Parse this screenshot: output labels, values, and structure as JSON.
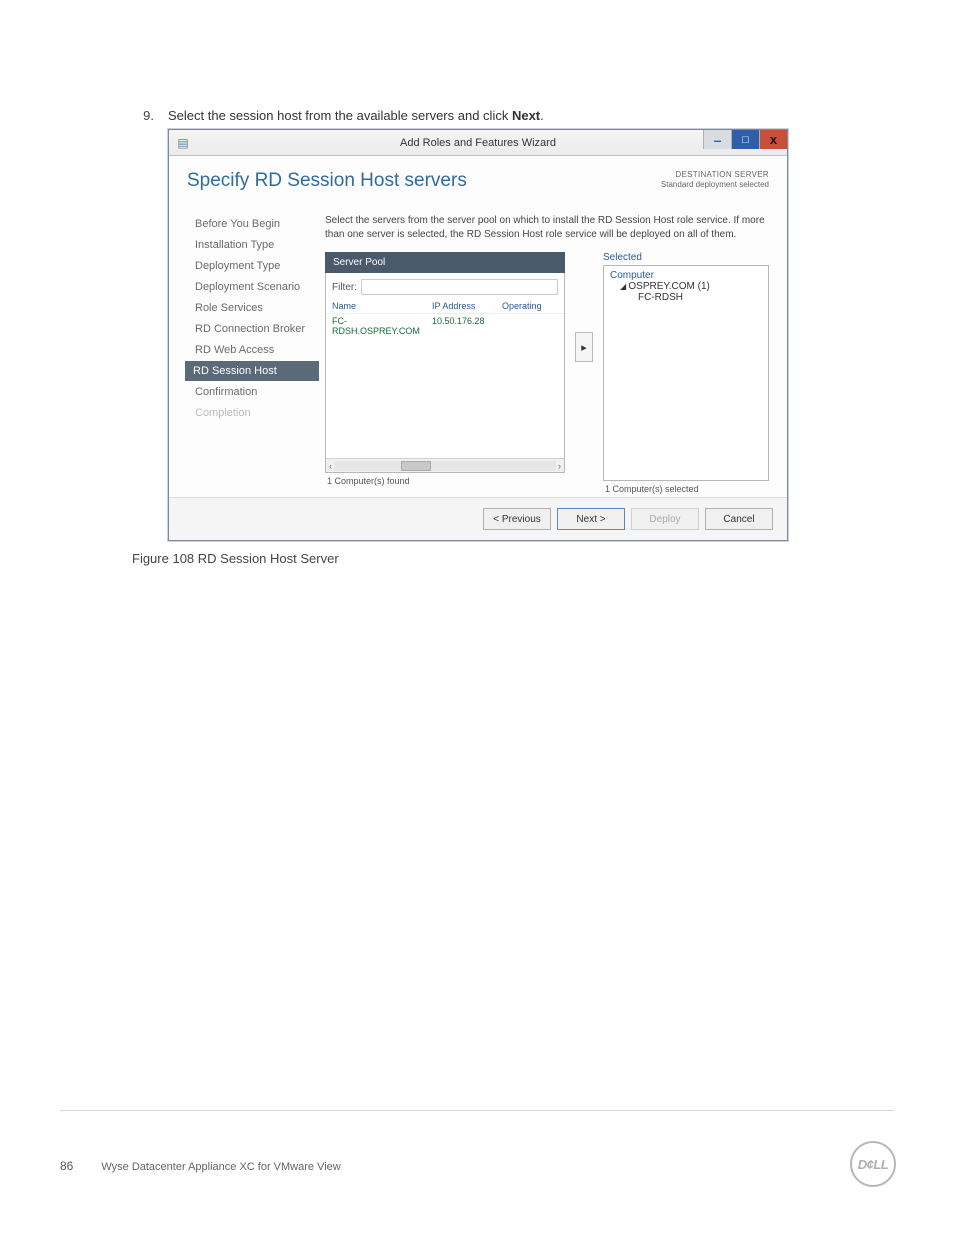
{
  "step": {
    "number": "9.",
    "text_pre": "Select the session host from the available servers and click ",
    "text_bold": "Next",
    "text_post": "."
  },
  "window": {
    "title": "Add Roles and Features Wizard",
    "header_title": "Specify RD Session Host servers",
    "dest_line1": "DESTINATION SERVER",
    "dest_line2": "Standard deployment selected",
    "description": "Select the servers from the server pool on which to install the RD Session Host role service. If more than one server is selected, the RD Session Host role service will be deployed on all of them.",
    "nav": [
      {
        "label": "Before You Begin",
        "state": "done"
      },
      {
        "label": "Installation Type",
        "state": "done"
      },
      {
        "label": "Deployment Type",
        "state": "done"
      },
      {
        "label": "Deployment Scenario",
        "state": "done"
      },
      {
        "label": "Role Services",
        "state": "done"
      },
      {
        "label": "RD Connection Broker",
        "state": "done"
      },
      {
        "label": "RD Web Access",
        "state": "done"
      },
      {
        "label": "RD Session Host",
        "state": "active"
      },
      {
        "label": "Confirmation",
        "state": "done"
      },
      {
        "label": "Completion",
        "state": "disabled"
      }
    ],
    "pool": {
      "header": "Server Pool",
      "filter_label": "Filter:",
      "columns": {
        "name": "Name",
        "ip": "IP Address",
        "os": "Operating"
      },
      "rows": [
        {
          "name": "FC-RDSH.OSPREY.COM",
          "ip": "10.50.176.28",
          "os": ""
        }
      ],
      "found": "1 Computer(s) found"
    },
    "selected": {
      "label": "Selected",
      "tree_root": "Computer",
      "tree_group": "OSPREY.COM (1)",
      "tree_item": "FC-RDSH",
      "count": "1 Computer(s) selected"
    },
    "buttons": {
      "previous": "< Previous",
      "next": "Next >",
      "deploy": "Deploy",
      "cancel": "Cancel"
    }
  },
  "caption": "Figure 108  RD Session Host Server",
  "footer": {
    "page": "86",
    "doc": "Wyse Datacenter Appliance XC for VMware View",
    "logo": "D¢LL"
  },
  "colors": {
    "header_blue": "#2f6b9f",
    "nav_active_bg": "#5a6a78",
    "pool_header_bg": "#4a5a6a",
    "link_blue": "#2a5a9a",
    "row_green": "#1a6a3a",
    "close_red": "#c94f3d",
    "max_blue": "#2f5fa8"
  }
}
